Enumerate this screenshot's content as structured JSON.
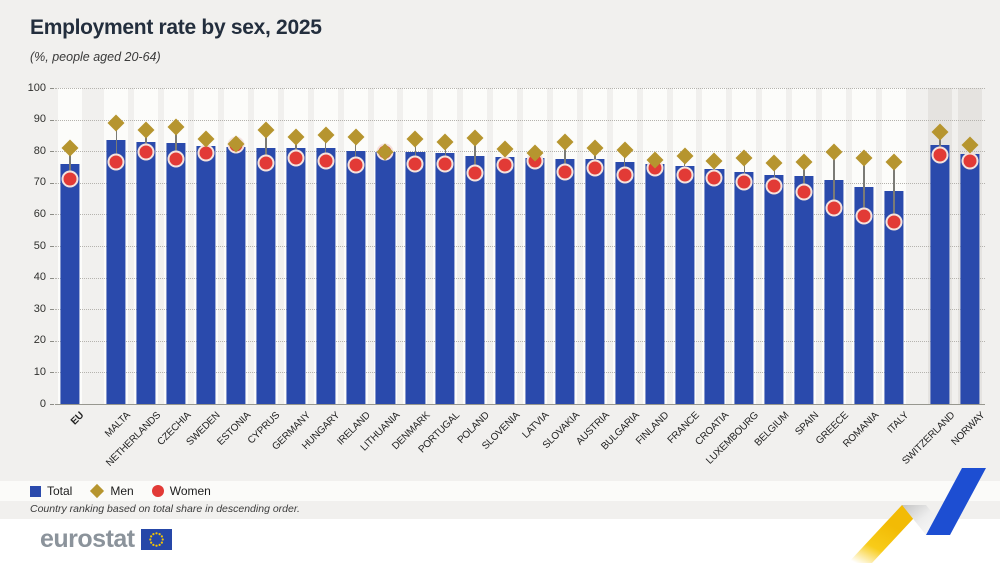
{
  "title": "Employment rate by sex, 2025",
  "subtitle": "(%, people aged 20-64)",
  "note": "Country ranking based on total share in descending order.",
  "legend": {
    "items": [
      {
        "label": "Total",
        "marker": "blue-square",
        "color": "#2a4aac"
      },
      {
        "label": "Men",
        "marker": "gold-diamond",
        "color": "#b6952f"
      },
      {
        "label": "Women",
        "marker": "red-circle",
        "color": "#e23a36"
      }
    ]
  },
  "footer": {
    "logo_text": "eurostat"
  },
  "colors": {
    "background": "#f1f0ee",
    "bar_blue": "#2a4aac",
    "men_gold": "#b6952f",
    "women_red": "#e23a36",
    "band_white": "#fcfcfa",
    "band_efta_gray": "#e5e3e0",
    "grid": "#b5b3ae",
    "title_text": "#232e3d"
  },
  "chart_data": {
    "type": "bar",
    "title": "Employment rate by sex, 2025",
    "unit": "%, people aged 20-64",
    "ylim": [
      0,
      100
    ],
    "ytick_step": 10,
    "grid": "horizontal-dotted",
    "legend_position": "bottom-left",
    "series_names": [
      "Total",
      "Men",
      "Women"
    ],
    "marker_notes": "Total = blue bar, Men = gold diamond, Women = red circle",
    "countries": [
      {
        "name": "EU",
        "group": "eu-aggregate",
        "total": 76.0,
        "men": 81.0,
        "women": 71.2
      },
      {
        "name": "MALTA",
        "group": "member",
        "total": 83.4,
        "men": 88.9,
        "women": 76.5
      },
      {
        "name": "NETHERLANDS",
        "group": "member",
        "total": 83.0,
        "men": 86.8,
        "women": 79.6
      },
      {
        "name": "CZECHIA",
        "group": "member",
        "total": 82.5,
        "men": 87.6,
        "women": 77.4
      },
      {
        "name": "SWEDEN",
        "group": "member",
        "total": 81.5,
        "men": 84.0,
        "women": 79.3
      },
      {
        "name": "ESTONIA",
        "group": "member",
        "total": 81.2,
        "men": 82.3,
        "women": 81.9
      },
      {
        "name": "CYPRUS",
        "group": "member",
        "total": 81.1,
        "men": 86.6,
        "women": 76.4
      },
      {
        "name": "GERMANY",
        "group": "member",
        "total": 81.0,
        "men": 84.6,
        "women": 77.7
      },
      {
        "name": "HUNGARY",
        "group": "member",
        "total": 80.9,
        "men": 85.1,
        "women": 76.8
      },
      {
        "name": "IRELAND",
        "group": "member",
        "total": 80.1,
        "men": 84.6,
        "women": 75.5
      },
      {
        "name": "LITHUANIA",
        "group": "member",
        "total": 79.9,
        "men": 79.7,
        "women": 79.6
      },
      {
        "name": "DENMARK",
        "group": "member",
        "total": 79.7,
        "men": 83.9,
        "women": 76.1
      },
      {
        "name": "PORTUGAL",
        "group": "member",
        "total": 79.4,
        "men": 83.0,
        "women": 75.8
      },
      {
        "name": "POLAND",
        "group": "member",
        "total": 78.6,
        "men": 84.1,
        "women": 73.1
      },
      {
        "name": "SLOVENIA",
        "group": "member",
        "total": 78.2,
        "men": 80.7,
        "women": 75.7
      },
      {
        "name": "LATVIA",
        "group": "member",
        "total": 77.8,
        "men": 79.4,
        "women": 76.9
      },
      {
        "name": "SLOVAKIA",
        "group": "member",
        "total": 77.6,
        "men": 82.8,
        "women": 73.5
      },
      {
        "name": "AUSTRIA",
        "group": "member",
        "total": 77.4,
        "men": 81.0,
        "women": 74.6
      },
      {
        "name": "BULGARIA",
        "group": "member",
        "total": 76.7,
        "men": 80.4,
        "women": 72.6
      },
      {
        "name": "FINLAND",
        "group": "member",
        "total": 75.9,
        "men": 77.3,
        "women": 74.7
      },
      {
        "name": "FRANCE",
        "group": "member",
        "total": 75.3,
        "men": 78.6,
        "women": 72.6
      },
      {
        "name": "CROATIA",
        "group": "member",
        "total": 74.3,
        "men": 76.8,
        "women": 71.5
      },
      {
        "name": "LUXEMBOURG",
        "group": "member",
        "total": 73.5,
        "men": 77.7,
        "women": 70.4
      },
      {
        "name": "BELGIUM",
        "group": "member",
        "total": 72.5,
        "men": 76.4,
        "women": 69.1
      },
      {
        "name": "SPAIN",
        "group": "member",
        "total": 72.1,
        "men": 76.6,
        "women": 67.1
      },
      {
        "name": "GREECE",
        "group": "member",
        "total": 70.8,
        "men": 79.6,
        "women": 62.1
      },
      {
        "name": "ROMANIA",
        "group": "member",
        "total": 68.8,
        "men": 78.0,
        "women": 59.4
      },
      {
        "name": "ITALY",
        "group": "member",
        "total": 67.3,
        "men": 76.7,
        "women": 57.6
      },
      {
        "name": "SWITZERLAND",
        "group": "efta",
        "total": 82.0,
        "men": 86.0,
        "women": 78.9
      },
      {
        "name": "NORWAY",
        "group": "efta",
        "total": 79.2,
        "men": 82.0,
        "women": 76.8
      }
    ]
  }
}
